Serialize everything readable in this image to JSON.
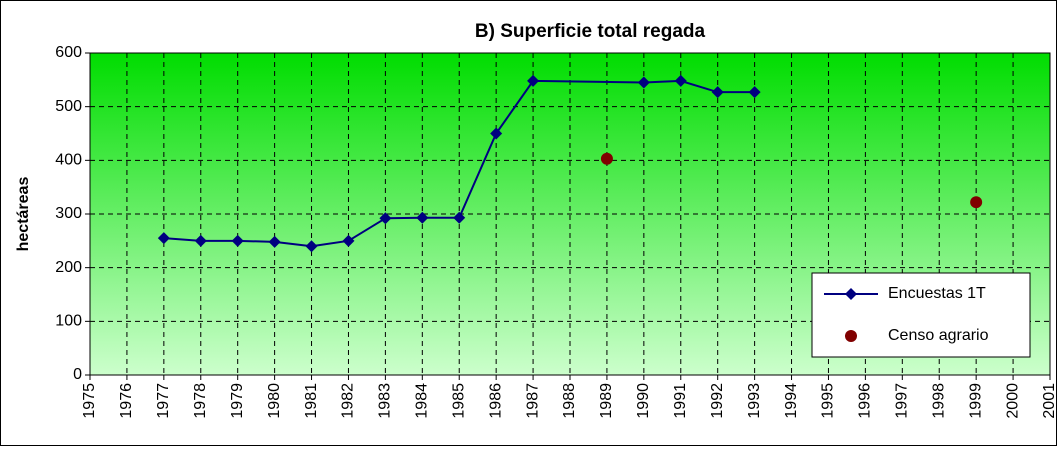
{
  "chart_data": {
    "type": "line",
    "title": "B) Superficie total regada",
    "y_label": "hectáreas",
    "xlim": [
      1975,
      2001
    ],
    "xticks": [
      1975,
      1976,
      1977,
      1978,
      1979,
      1980,
      1981,
      1982,
      1983,
      1984,
      1985,
      1986,
      1987,
      1988,
      1989,
      1990,
      1991,
      1992,
      1993,
      1994,
      1995,
      1996,
      1997,
      1998,
      1999,
      2000,
      2001
    ],
    "ylim": [
      0,
      600
    ],
    "yticks": [
      0,
      100,
      200,
      300,
      400,
      500,
      600
    ],
    "grid": true,
    "legend": "lower right",
    "series": [
      {
        "name": "Encuestas 1T",
        "color": "#000080",
        "style": "line-marker",
        "x": [
          1977,
          1978,
          1979,
          1980,
          1981,
          1982,
          1983,
          1984,
          1985,
          1986,
          1987,
          1990,
          1991,
          1992,
          1993
        ],
        "values": [
          255,
          250,
          250,
          248,
          240,
          250,
          292,
          293,
          293,
          450,
          548,
          545,
          548,
          527,
          527
        ]
      },
      {
        "name": "Censo agrario",
        "color": "#800000",
        "style": "marker",
        "x": [
          1989,
          1999
        ],
        "values": [
          403,
          322
        ]
      }
    ]
  }
}
